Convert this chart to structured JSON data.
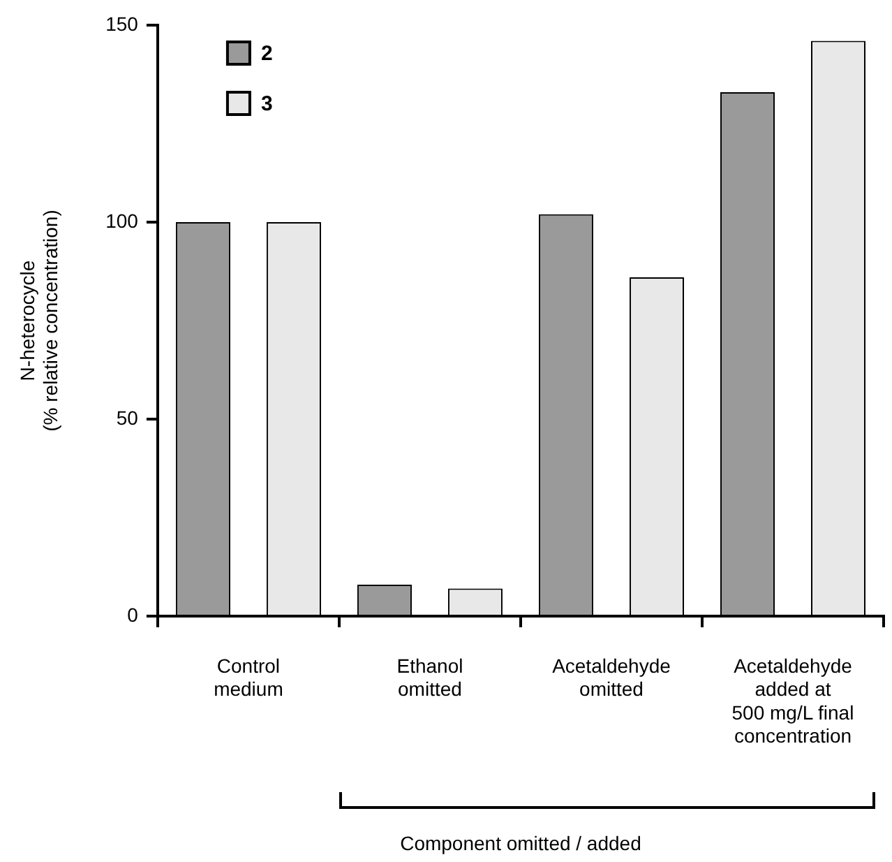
{
  "chart_data": {
    "type": "bar",
    "xlabel": "Component omitted / added",
    "ylabel": "N-heterocycle\n(% relative concentration)",
    "categories": [
      "Control\nmedium",
      "Ethanol\nomitted",
      "Acetaldehyde\nomitted",
      "Acetaldehyde\nadded at\n500 mg/L final\nconcentration"
    ],
    "series": [
      {
        "name": "2",
        "color": "#9a9a9a",
        "values": [
          100,
          8,
          102,
          133
        ]
      },
      {
        "name": "3",
        "color": "#e8e8e8",
        "values": [
          100,
          7,
          86,
          146
        ]
      }
    ],
    "ylim": [
      0,
      150
    ],
    "yticks": [
      0,
      50,
      100,
      150
    ],
    "grid": false,
    "legend": "top left"
  }
}
